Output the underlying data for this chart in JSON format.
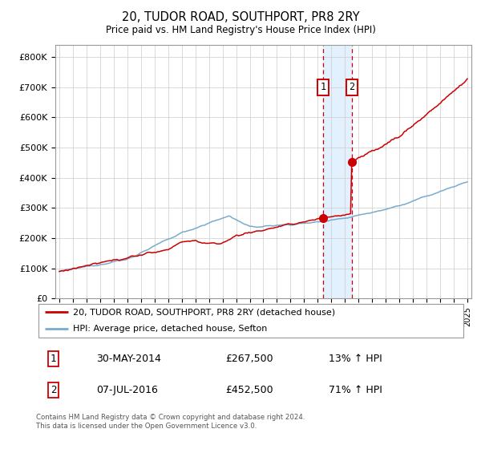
{
  "title": "20, TUDOR ROAD, SOUTHPORT, PR8 2RY",
  "subtitle": "Price paid vs. HM Land Registry's House Price Index (HPI)",
  "ylabel_ticks": [
    "£0",
    "£100K",
    "£200K",
    "£300K",
    "£400K",
    "£500K",
    "£600K",
    "£700K",
    "£800K"
  ],
  "ytick_values": [
    0,
    100000,
    200000,
    300000,
    400000,
    500000,
    600000,
    700000,
    800000
  ],
  "ylim": [
    0,
    840000
  ],
  "xlim_start": 1994.7,
  "xlim_end": 2025.3,
  "color_red": "#cc0000",
  "color_blue": "#7aabcc",
  "color_shading": "#ddeeff",
  "marker1_x": 2014.41,
  "marker1_y": 267500,
  "marker2_x": 2016.52,
  "marker2_y": 452500,
  "label1_date": "30-MAY-2014",
  "label1_price": "£267,500",
  "label1_hpi": "13% ↑ HPI",
  "label2_date": "07-JUL-2016",
  "label2_price": "£452,500",
  "label2_hpi": "71% ↑ HPI",
  "legend_line1": "20, TUDOR ROAD, SOUTHPORT, PR8 2RY (detached house)",
  "legend_line2": "HPI: Average price, detached house, Sefton",
  "footer": "Contains HM Land Registry data © Crown copyright and database right 2024.\nThis data is licensed under the Open Government Licence v3.0.",
  "background_color": "#ffffff",
  "grid_color": "#cccccc"
}
